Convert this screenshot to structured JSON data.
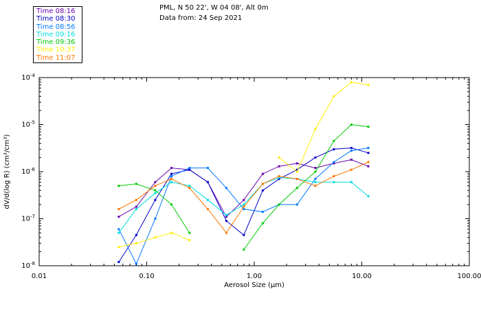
{
  "header": {
    "line1": "PML, N 50 22', W 04 08', Alt 0m",
    "line2": "Data from: 24 Sep 2021"
  },
  "chart_data": {
    "type": "line",
    "xscale": "log",
    "yscale": "log",
    "xlim": [
      0.01,
      100
    ],
    "ylim": [
      1e-08,
      0.0001
    ],
    "xlabel": "Aerosol Size (μm)",
    "ylabel": "dV/d(log R) (cm³/cm³)",
    "x_tick_labels": [
      "0.01",
      "0.10",
      "1.00",
      "10.00",
      "100.00"
    ],
    "x_tick_values": [
      0.01,
      0.1,
      1,
      10,
      100
    ],
    "y_tick_labels": [
      {
        "base": "10",
        "exp": "-8",
        "value": 1e-08
      },
      {
        "base": "10",
        "exp": "-7",
        "value": 1e-07
      },
      {
        "base": "10",
        "exp": "-6",
        "value": 1e-06
      },
      {
        "base": "10",
        "exp": "-5",
        "value": 1e-05
      },
      {
        "base": "10",
        "exp": "-4",
        "value": 0.0001
      }
    ],
    "legend_placement": "top-left",
    "x": [
      0.055,
      0.08,
      0.12,
      0.17,
      0.25,
      0.37,
      0.55,
      0.8,
      1.2,
      1.7,
      2.5,
      3.7,
      5.5,
      8.0,
      11.5
    ],
    "series": [
      {
        "name": "Time 08:16",
        "color": "#6600aa",
        "values": [
          1.1e-07,
          1.8e-07,
          6e-07,
          1.2e-06,
          1.1e-06,
          6e-07,
          1.1e-07,
          2.5e-07,
          9e-07,
          1.3e-06,
          1.5e-06,
          1.2e-06,
          1.5e-06,
          1.8e-06,
          1.3e-06
        ]
      },
      {
        "name": "Time 08:30",
        "color": "#0000cc",
        "values": [
          1.2e-08,
          4.5e-08,
          2.5e-07,
          9e-07,
          1.1e-06,
          6e-07,
          9e-08,
          4.5e-08,
          4e-07,
          7e-07,
          1.1e-06,
          2e-06,
          3e-06,
          3.2e-06,
          2.5e-06
        ]
      },
      {
        "name": "Time 08:56",
        "color": "#0077ff",
        "values": [
          6e-08,
          1.1e-08,
          1e-07,
          8e-07,
          1.2e-06,
          1.2e-06,
          4.5e-07,
          1.6e-07,
          1.4e-07,
          2e-07,
          2e-07,
          7e-07,
          1.6e-06,
          2.8e-06,
          3.2e-06
        ]
      },
      {
        "name": "Time 09:16",
        "color": "#00dddd",
        "values": [
          5e-08,
          1.6e-07,
          3.5e-07,
          6e-07,
          5e-07,
          2.5e-07,
          1.2e-07,
          2e-07,
          5.5e-07,
          7.5e-07,
          7e-07,
          6e-07,
          6e-07,
          6e-07,
          3e-07
        ]
      },
      {
        "name": "Time 09:36",
        "color": "#00cc00",
        "values": [
          5e-07,
          5.5e-07,
          4e-07,
          2e-07,
          5e-08,
          null,
          null,
          2.2e-08,
          8e-08,
          2e-07,
          4.5e-07,
          1e-06,
          4.5e-06,
          1e-05,
          9e-06
        ]
      },
      {
        "name": "Time 10:37",
        "color": "#ffee00",
        "values": [
          2.5e-08,
          3e-08,
          4e-08,
          5e-08,
          3.5e-08,
          null,
          null,
          null,
          null,
          2e-06,
          1e-06,
          8e-06,
          4e-05,
          8e-05,
          7e-05
        ]
      },
      {
        "name": "Time 11:07",
        "color": "#ff7700",
        "values": [
          1.6e-07,
          2.5e-07,
          5e-07,
          7e-07,
          4.5e-07,
          1.6e-07,
          5e-08,
          1.8e-07,
          5.5e-07,
          8e-07,
          7e-07,
          5e-07,
          8e-07,
          1.1e-06,
          1.6e-06
        ]
      }
    ]
  }
}
